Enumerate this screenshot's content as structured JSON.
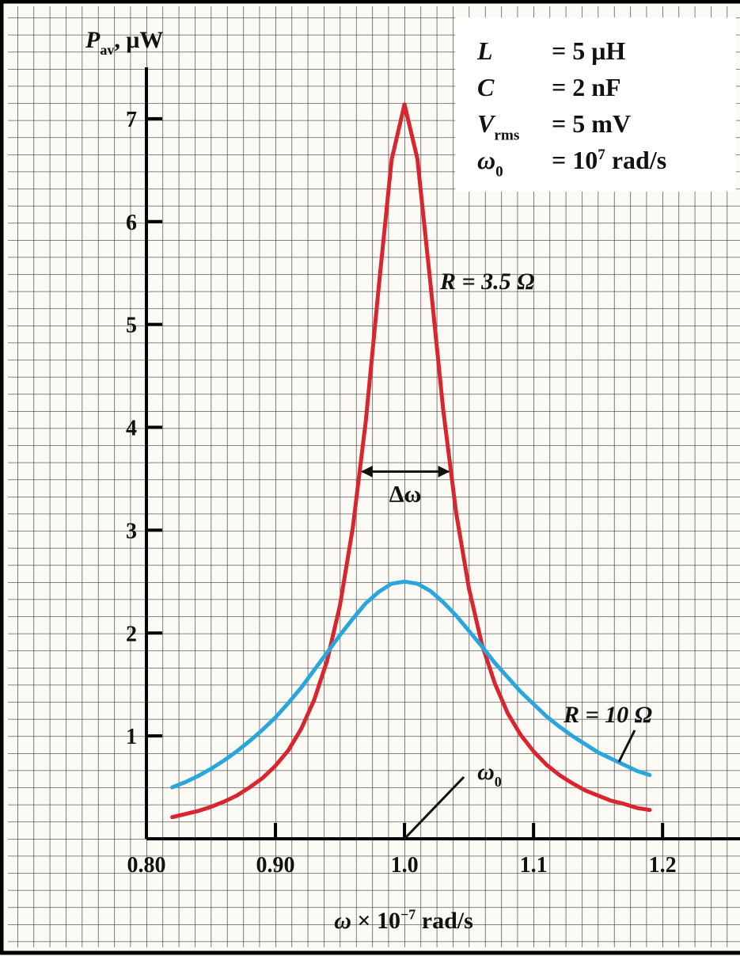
{
  "chart_data": {
    "type": "line",
    "ylabel": {
      "symbol": "P",
      "sub": "av",
      "unit": ", μW"
    },
    "xlabel": {
      "symbol": "ω",
      "text": " × 10",
      "sup": "−7",
      "unit": " rad/s"
    },
    "params": [
      {
        "symbol": "L",
        "value": "= 5 μH"
      },
      {
        "symbol": "C",
        "value": "= 2 nF"
      },
      {
        "symbol": "V",
        "sub": "rms",
        "value": "= 5 mV"
      },
      {
        "symbol": "ω",
        "sub": "0",
        "value": "= 10",
        "sup": "7",
        "unit": " rad/s"
      }
    ],
    "annotations": {
      "bandwidth": "Δω",
      "resonance": {
        "symbol": "ω",
        "sub": "0"
      }
    },
    "x": [
      0.82,
      0.83,
      0.84,
      0.85,
      0.86,
      0.87,
      0.88,
      0.89,
      0.9,
      0.91,
      0.92,
      0.93,
      0.94,
      0.95,
      0.96,
      0.97,
      0.98,
      0.99,
      1.0,
      1.01,
      1.02,
      1.03,
      1.04,
      1.05,
      1.06,
      1.07,
      1.08,
      1.09,
      1.1,
      1.11,
      1.12,
      1.13,
      1.14,
      1.15,
      1.16,
      1.17,
      1.18,
      1.19
    ],
    "series": [
      {
        "name": "R = 3.5 Ω",
        "color": "#d9262e",
        "values": [
          0.21,
          0.24,
          0.27,
          0.31,
          0.36,
          0.42,
          0.5,
          0.59,
          0.71,
          0.86,
          1.07,
          1.35,
          1.73,
          2.27,
          3.03,
          4.06,
          5.36,
          6.6,
          7.14,
          6.61,
          5.41,
          4.17,
          3.17,
          2.43,
          1.89,
          1.51,
          1.22,
          1.01,
          0.85,
          0.72,
          0.62,
          0.54,
          0.47,
          0.42,
          0.37,
          0.34,
          0.3,
          0.28
        ]
      },
      {
        "name": "R = 10 Ω",
        "color": "#2aa6de",
        "values": [
          0.5,
          0.55,
          0.61,
          0.68,
          0.76,
          0.85,
          0.95,
          1.06,
          1.18,
          1.32,
          1.47,
          1.64,
          1.81,
          1.98,
          2.14,
          2.29,
          2.4,
          2.48,
          2.5,
          2.48,
          2.41,
          2.3,
          2.17,
          2.02,
          1.87,
          1.71,
          1.57,
          1.43,
          1.31,
          1.19,
          1.09,
          1.0,
          0.92,
          0.84,
          0.78,
          0.72,
          0.66,
          0.62
        ]
      }
    ],
    "xlim": [
      0.8,
      1.26
    ],
    "ylim": [
      0,
      7.5
    ],
    "xticks": [
      {
        "value": 0.8,
        "label": "0.80"
      },
      {
        "value": 0.9,
        "label": "0.90"
      },
      {
        "value": 1,
        "label": "1.0"
      },
      1.1,
      1.2
    ],
    "yticks": [
      1,
      2,
      3,
      4,
      5,
      6,
      7
    ]
  }
}
